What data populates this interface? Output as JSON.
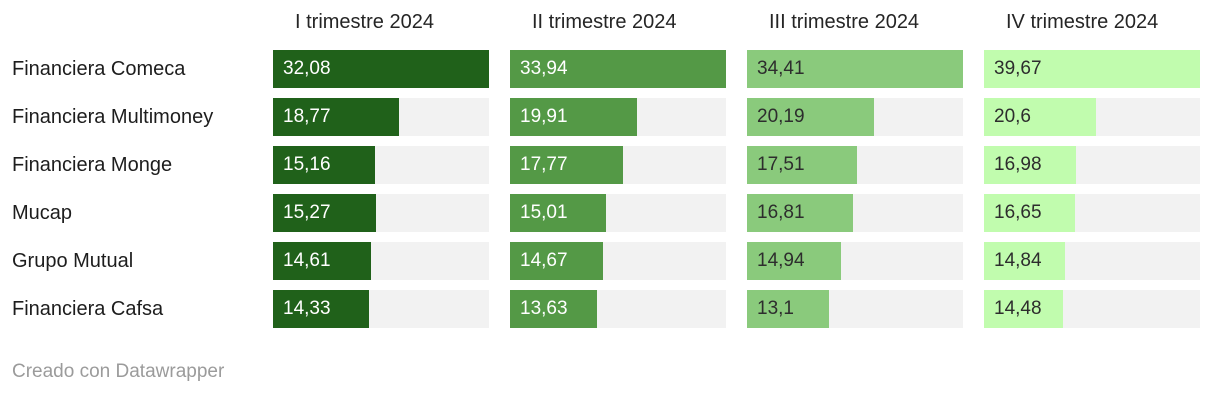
{
  "chart_data": {
    "type": "bar",
    "layout": "small-multiples-horizontal-bars-per-quarter",
    "title": "",
    "categories": [
      "Financiera Comeca",
      "Financiera Multimoney",
      "Financiera Monge",
      "Mucap",
      "Grupo Mutual",
      "Financiera Cafsa"
    ],
    "series": [
      {
        "name": "I trimestre 2024",
        "values": [
          32.08,
          18.77,
          15.16,
          15.27,
          14.61,
          14.33
        ],
        "labels": [
          "32,08",
          "18,77",
          "15,16",
          "15,27",
          "14,61",
          "14,33"
        ],
        "bar_color": "#20611a",
        "label_color": "#ffffff"
      },
      {
        "name": "II trimestre 2024",
        "values": [
          33.94,
          19.91,
          17.77,
          15.01,
          14.67,
          13.63
        ],
        "labels": [
          "33,94",
          "19,91",
          "17,77",
          "15,01",
          "14,67",
          "13,63"
        ],
        "bar_color": "#549946",
        "label_color": "#ffffff"
      },
      {
        "name": "III trimestre 2024",
        "values": [
          34.41,
          20.19,
          17.51,
          16.81,
          14.94,
          13.1
        ],
        "labels": [
          "34,41",
          "20,19",
          "17,51",
          "16,81",
          "14,94",
          "13,1"
        ],
        "bar_color": "#8aca7c",
        "label_color": "#2d2d2d"
      },
      {
        "name": "IV trimestre 2024",
        "values": [
          39.67,
          20.6,
          16.98,
          16.65,
          14.84,
          14.48
        ],
        "labels": [
          "39,67",
          "20,6",
          "16,98",
          "16,65",
          "14,84",
          "14,48"
        ],
        "bar_color": "#c1fcae",
        "label_color": "#2d2d2d"
      }
    ],
    "scaling": "each-column-scaled-to-its-own-max",
    "track_color": "#f2f2f2",
    "grid": false,
    "legend_position": "none"
  },
  "footer": {
    "credit": "Creado con Datawrapper"
  }
}
